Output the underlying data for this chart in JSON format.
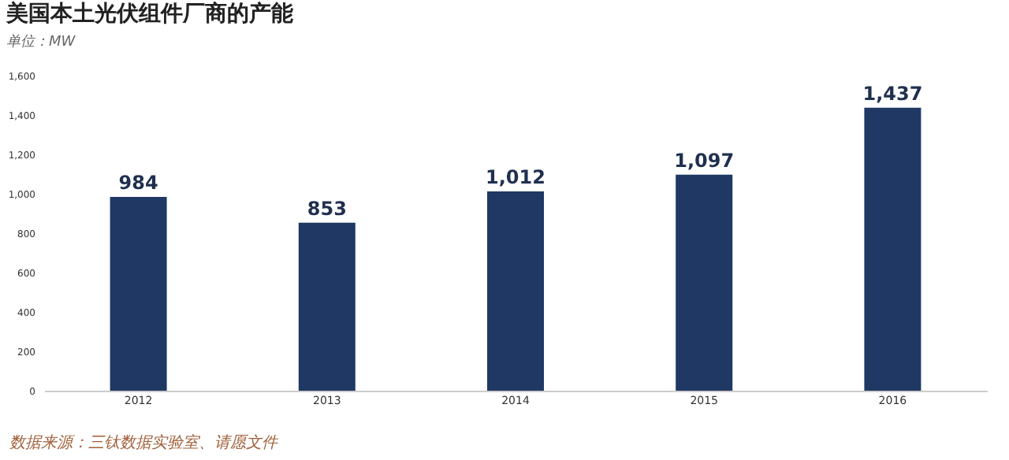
{
  "chart_data": {
    "type": "bar",
    "title": "美国本土光伏组件厂商的产能",
    "subtitle": "单位：MW",
    "categories": [
      "2012",
      "2013",
      "2014",
      "2015",
      "2016"
    ],
    "values": [
      984,
      853,
      1012,
      1097,
      1437
    ],
    "value_labels": [
      "984",
      "853",
      "1,012",
      "1,097",
      "1,437"
    ],
    "color": "#1f3864",
    "ylim": [
      0,
      1600
    ],
    "yticks": [
      0,
      200,
      400,
      600,
      800,
      {
        "value": 1000,
        "label": "1,000"
      },
      {
        "value": 1200,
        "label": "1,200"
      },
      {
        "value": 1400,
        "label": "1,400"
      },
      {
        "value": 1600,
        "label": "1,600"
      }
    ],
    "grid": false,
    "annotations": [
      "数据来源：三钛数据实验室、请愿文件"
    ]
  }
}
